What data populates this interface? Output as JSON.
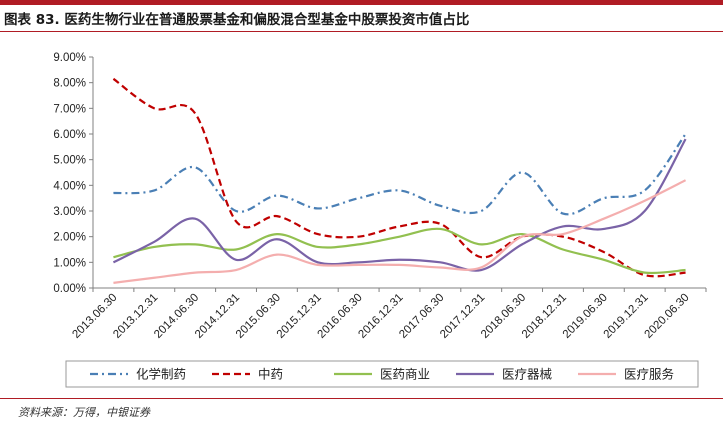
{
  "header": {
    "title": "图表 83. 医药生物行业在普通股票基金和偏股混合型基金中股票投资市值占比"
  },
  "footer": {
    "source": "资料来源：万得，中银证券"
  },
  "colors": {
    "brand_red": "#b01c24"
  },
  "chart_data": {
    "type": "line",
    "title": "图表 83. 医药生物行业在普通股票基金和偏股混合型基金中股票投资市值占比",
    "xlabel": "",
    "ylabel": "",
    "ylim": [
      0,
      9
    ],
    "y_ticks": [
      "0.00%",
      "1.00%",
      "2.00%",
      "3.00%",
      "4.00%",
      "5.00%",
      "6.00%",
      "7.00%",
      "8.00%",
      "9.00%"
    ],
    "grid": false,
    "legend_position": "bottom",
    "categories": [
      "2013.06.30",
      "2013.12.31",
      "2014.06.30",
      "2014.12.31",
      "2015.06.30",
      "2015.12.31",
      "2016.06.30",
      "2016.12.31",
      "2017.06.30",
      "2017.12.31",
      "2018.06.30",
      "2018.12.31",
      "2019.06.30",
      "2019.12.31",
      "2020.06.30"
    ],
    "series": [
      {
        "name": "化学制药",
        "color": "#4a7fb5",
        "dash": "dashdot",
        "values": [
          3.7,
          3.8,
          4.7,
          3.0,
          3.6,
          3.1,
          3.5,
          3.8,
          3.2,
          3.0,
          4.5,
          2.9,
          3.5,
          3.8,
          6.0
        ]
      },
      {
        "name": "中药",
        "color": "#c00000",
        "dash": "dash",
        "values": [
          8.15,
          7.0,
          6.8,
          2.6,
          2.8,
          2.1,
          2.0,
          2.4,
          2.5,
          1.2,
          2.0,
          2.0,
          1.4,
          0.5,
          0.6
        ]
      },
      {
        "name": "医药商业",
        "color": "#92c050",
        "dash": "solid",
        "values": [
          1.2,
          1.6,
          1.7,
          1.5,
          2.1,
          1.6,
          1.7,
          2.0,
          2.3,
          1.7,
          2.1,
          1.5,
          1.1,
          0.6,
          0.7
        ]
      },
      {
        "name": "医疗器械",
        "color": "#7a63a7",
        "dash": "solid",
        "values": [
          1.0,
          1.8,
          2.7,
          1.1,
          1.9,
          1.0,
          1.0,
          1.1,
          1.0,
          0.7,
          1.7,
          2.4,
          2.3,
          3.0,
          5.8
        ]
      },
      {
        "name": "医疗服务",
        "color": "#f4aeae",
        "dash": "solid",
        "values": [
          0.2,
          0.4,
          0.6,
          0.7,
          1.3,
          0.9,
          0.9,
          0.9,
          0.8,
          0.8,
          2.0,
          2.1,
          2.7,
          3.4,
          4.2
        ]
      }
    ]
  }
}
